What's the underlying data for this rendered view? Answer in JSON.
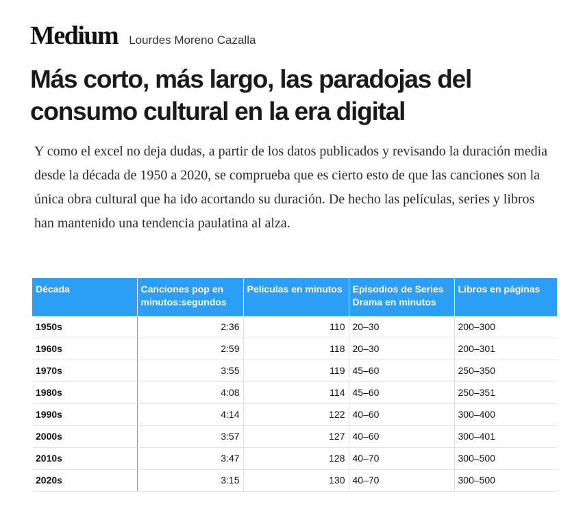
{
  "header": {
    "logo": "Medium",
    "author": "Lourdes Moreno Cazalla"
  },
  "article": {
    "title": "Más corto, más largo, las paradojas del consumo cultural en la era digital",
    "paragraph": "Y como el excel no deja dudas, a partir de los datos publicados y revisando la duración media desde la década de 1950 a 2020, se comprueba que es cierto esto de que las canciones son la única obra cultural que ha ido acortando su duración. De hecho las películas, series y libros han mantenido una tendencia paulatina al alza."
  },
  "table": {
    "header_color": "#2c9ef5",
    "columns": [
      "Década",
      "Canciones pop en minutos:segundos",
      "Películas en minutos",
      "Episodios de Series Drama en minutos",
      "Libros en páginas"
    ],
    "rows": [
      [
        "1950s",
        "2:36",
        "110",
        "20–30",
        "200–300"
      ],
      [
        "1960s",
        "2:59",
        "118",
        "20–30",
        "200–301"
      ],
      [
        "1970s",
        "3:55",
        "119",
        "45–60",
        "250–350"
      ],
      [
        "1980s",
        "4:08",
        "114",
        "45–60",
        "250–351"
      ],
      [
        "1990s",
        "4:14",
        "122",
        "40–60",
        "300–400"
      ],
      [
        "2000s",
        "3:57",
        "127",
        "40–60",
        "300–401"
      ],
      [
        "2010s",
        "3:47",
        "128",
        "40–70",
        "300–500"
      ],
      [
        "2020s",
        "3:15",
        "130",
        "40–70",
        "300–500"
      ]
    ]
  }
}
